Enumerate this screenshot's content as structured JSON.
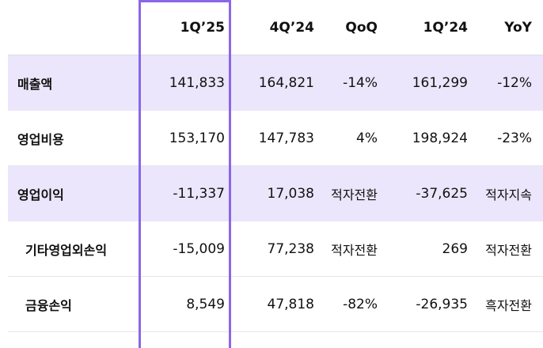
{
  "columns": [
    "1Q’25",
    "4Q’24",
    "QoQ",
    "1Q’24",
    "YoY"
  ],
  "rows": [
    {
      "label": "매출액",
      "q1_25": "141,833",
      "q4_24": "164,821",
      "qoq": "-14%",
      "q1_24": "161,299",
      "yoy": "-12%"
    },
    {
      "label": "영업비용",
      "q1_25": "153,170",
      "q4_24": "147,783",
      "qoq": "4%",
      "q1_24": "198,924",
      "yoy": "-23%"
    },
    {
      "label": "영업이익",
      "q1_25": "-11,337",
      "q4_24": "17,038",
      "qoq": "적자전환",
      "q1_24": "-37,625",
      "yoy": "적자지속"
    },
    {
      "label": "기타영업외손익",
      "q1_25": "-15,009",
      "q4_24": "77,238",
      "qoq": "적자전환",
      "q1_24": "269",
      "yoy": "적자전환"
    },
    {
      "label": "금융손익",
      "q1_25": "8,549",
      "q4_24": "47,818",
      "qoq": "-82%",
      "q1_24": "-26,935",
      "yoy": "흑자전환"
    }
  ],
  "colors": {
    "highlight_row": "#ebe6fb",
    "focus_border": "#8b67e8",
    "divider": "#e6e6ea"
  }
}
